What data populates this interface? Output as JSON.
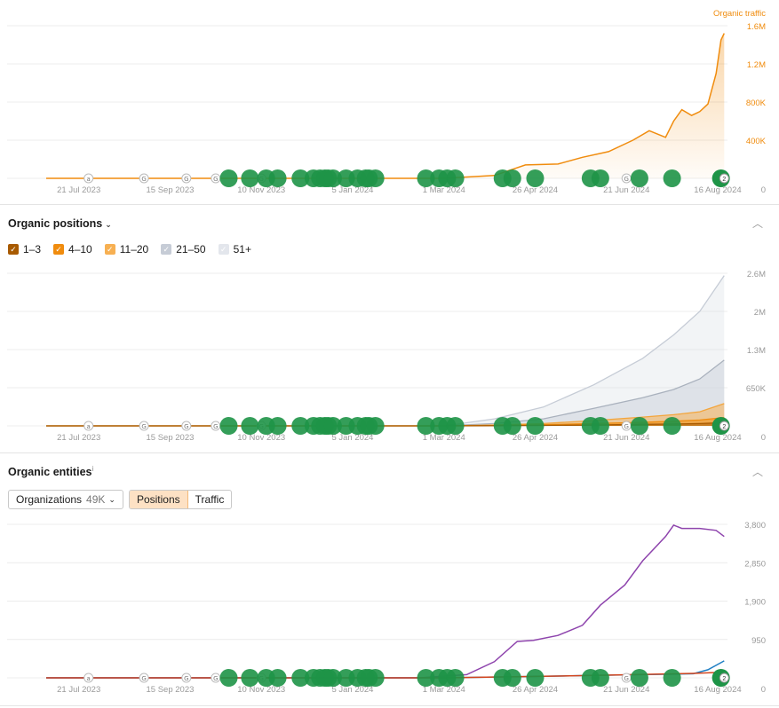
{
  "colors": {
    "traffic": "#f08c0e",
    "pos_1_3": "#a85a00",
    "pos_4_10": "#f08c0e",
    "pos_11_20": "#f7b052",
    "pos_21_50": "#c6ccd6",
    "pos_51_plus": "#e3e6ec",
    "organizations": "#8e44ad",
    "marker": "#1e9447"
  },
  "x_ticks": [
    "21 Jul 2023",
    "15 Sep 2023",
    "10 Nov 2023",
    "5 Jan 2024",
    "1 Mar 2024",
    "26 Apr 2024",
    "21 Jun 2024",
    "16 Aug 2024"
  ],
  "markers": {
    "small_icons": [
      "a",
      "G",
      "G",
      "G",
      "G",
      "G",
      "2"
    ]
  },
  "sections": {
    "positions": {
      "title": "Organic positions",
      "legend": [
        {
          "label": "1–3",
          "checked": true
        },
        {
          "label": "4–10",
          "checked": true
        },
        {
          "label": "11–20",
          "checked": true
        },
        {
          "label": "21–50",
          "checked": true
        },
        {
          "label": "51+",
          "checked": true
        }
      ]
    },
    "entities": {
      "title": "Organic entities",
      "info": "i",
      "dropdown_label": "Organizations",
      "dropdown_value": "49K",
      "toggle_positions": "Positions",
      "toggle_traffic": "Traffic"
    }
  },
  "chart_data": [
    {
      "type": "area",
      "legend_label": "Organic traffic",
      "y_ticks": [
        "1.6M",
        "1.2M",
        "800K",
        "400K",
        "0"
      ],
      "ylim": [
        0,
        1600000
      ],
      "series": [
        {
          "name": "Organic traffic",
          "x": [
            "2023-07-01",
            "2023-09-01",
            "2023-11-01",
            "2024-01-01",
            "2024-03-01",
            "2024-04-01",
            "2024-04-20",
            "2024-05-10",
            "2024-05-25",
            "2024-06-10",
            "2024-06-25",
            "2024-07-05",
            "2024-07-15",
            "2024-07-20",
            "2024-07-25",
            "2024-07-31",
            "2024-08-05",
            "2024-08-10",
            "2024-08-15",
            "2024-08-18",
            "2024-08-20"
          ],
          "values": [
            0,
            0,
            0,
            0,
            0,
            30000,
            140000,
            150000,
            220000,
            280000,
            400000,
            500000,
            430000,
            600000,
            720000,
            660000,
            700000,
            780000,
            1100000,
            1450000,
            1520000
          ]
        }
      ]
    },
    {
      "type": "area",
      "y_ticks": [
        "2.6M",
        "2M",
        "1.3M",
        "650K",
        "0"
      ],
      "ylim": [
        0,
        2600000
      ],
      "series": [
        {
          "name": "51+",
          "x": [
            "2023-07-01",
            "2024-03-01",
            "2024-04-01",
            "2024-05-01",
            "2024-06-01",
            "2024-07-01",
            "2024-07-20",
            "2024-08-05",
            "2024-08-20"
          ],
          "values": [
            0,
            0,
            120000,
            320000,
            700000,
            1150000,
            1550000,
            1950000,
            2560000
          ]
        },
        {
          "name": "21–50",
          "x": [
            "2023-07-01",
            "2024-03-01",
            "2024-04-01",
            "2024-05-01",
            "2024-06-01",
            "2024-07-01",
            "2024-07-20",
            "2024-08-05",
            "2024-08-20"
          ],
          "values": [
            0,
            0,
            40000,
            120000,
            300000,
            480000,
            620000,
            800000,
            1120000
          ]
        },
        {
          "name": "11–20",
          "x": [
            "2023-07-01",
            "2024-03-01",
            "2024-04-01",
            "2024-05-01",
            "2024-06-01",
            "2024-07-01",
            "2024-07-20",
            "2024-08-05",
            "2024-08-20"
          ],
          "values": [
            0,
            0,
            15000,
            40000,
            90000,
            150000,
            190000,
            240000,
            380000
          ]
        },
        {
          "name": "4–10",
          "x": [
            "2023-07-01",
            "2024-03-01",
            "2024-04-01",
            "2024-05-01",
            "2024-06-01",
            "2024-07-01",
            "2024-07-20",
            "2024-08-05",
            "2024-08-20"
          ],
          "values": [
            0,
            0,
            8000,
            20000,
            40000,
            60000,
            80000,
            100000,
            140000
          ]
        },
        {
          "name": "1–3",
          "x": [
            "2023-07-01",
            "2024-03-01",
            "2024-04-01",
            "2024-05-01",
            "2024-06-01",
            "2024-07-01",
            "2024-07-20",
            "2024-08-05",
            "2024-08-20"
          ],
          "values": [
            0,
            0,
            3000,
            8000,
            15000,
            25000,
            32000,
            40000,
            55000
          ]
        }
      ]
    },
    {
      "type": "line",
      "y_ticks": [
        "3,800",
        "2,850",
        "1,900",
        "950",
        "0"
      ],
      "ylim": [
        0,
        3800
      ],
      "series": [
        {
          "name": "Organizations",
          "x": [
            "2023-07-01",
            "2024-02-15",
            "2024-03-15",
            "2024-04-01",
            "2024-04-15",
            "2024-04-25",
            "2024-05-10",
            "2024-05-25",
            "2024-06-05",
            "2024-06-20",
            "2024-07-01",
            "2024-07-15",
            "2024-07-20",
            "2024-07-25",
            "2024-08-05",
            "2024-08-15",
            "2024-08-20"
          ],
          "values": [
            0,
            0,
            80,
            400,
            900,
            930,
            1050,
            1300,
            1800,
            2300,
            2900,
            3500,
            3780,
            3700,
            3700,
            3650,
            3500
          ]
        },
        {
          "name": "",
          "x": [
            "2023-07-01",
            "2024-03-01",
            "2024-06-01",
            "2024-08-01",
            "2024-08-10",
            "2024-08-20"
          ],
          "values": [
            0,
            0,
            60,
            100,
            200,
            420
          ]
        },
        {
          "name": "",
          "x": [
            "2023-07-01",
            "2024-03-01",
            "2024-06-01",
            "2024-08-01",
            "2024-08-20"
          ],
          "values": [
            0,
            0,
            60,
            110,
            140
          ]
        }
      ]
    }
  ]
}
